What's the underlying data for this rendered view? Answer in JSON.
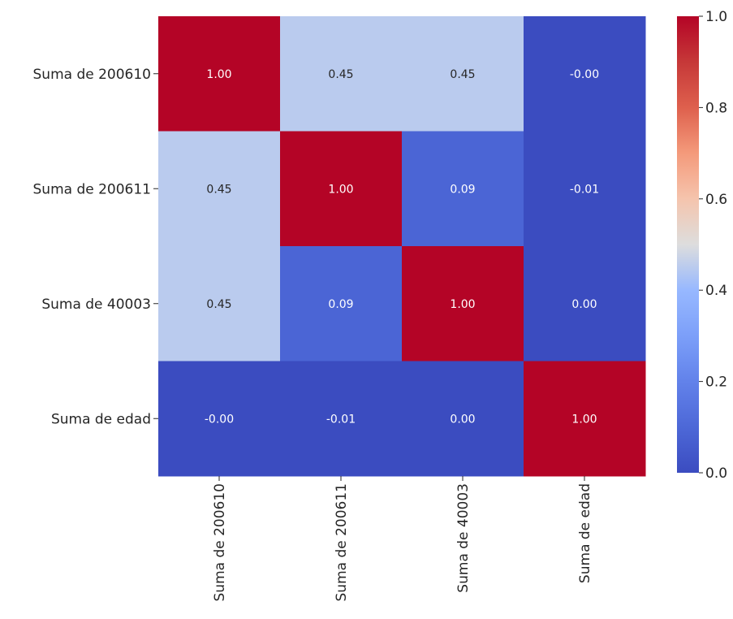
{
  "chart_data": {
    "type": "heatmap",
    "title": "",
    "xlabel": "",
    "ylabel": "",
    "colormap": "coolwarm",
    "x_labels": [
      "Suma de 200610",
      "Suma de 200611",
      "Suma de 40003",
      "Suma de edad"
    ],
    "y_labels": [
      "Suma de 200610",
      "Suma de 200611",
      "Suma de 40003",
      "Suma de edad"
    ],
    "values": [
      [
        1.0,
        0.45,
        0.45,
        -0.0
      ],
      [
        0.45,
        1.0,
        0.09,
        -0.01
      ],
      [
        0.45,
        0.09,
        1.0,
        0.0
      ],
      [
        -0.0,
        -0.01,
        0.0,
        1.0
      ]
    ],
    "annotations": [
      [
        "1.00",
        "0.45",
        "0.45",
        "-0.00"
      ],
      [
        "0.45",
        "1.00",
        "0.09",
        "-0.01"
      ],
      [
        "0.45",
        "0.09",
        "1.00",
        "0.00"
      ],
      [
        "-0.00",
        "-0.01",
        "0.00",
        "1.00"
      ]
    ],
    "colorbar": {
      "range": [
        0.0,
        1.0
      ],
      "ticks": [
        0.0,
        0.2,
        0.4,
        0.6,
        0.8,
        1.0
      ],
      "tick_labels": [
        "0.0",
        "0.2",
        "0.4",
        "0.6",
        "0.8",
        "1.0"
      ]
    }
  }
}
